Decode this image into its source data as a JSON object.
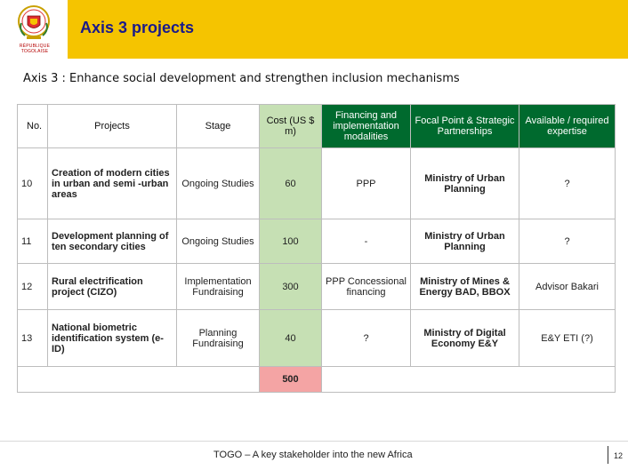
{
  "header": {
    "logo_text": "RÉPUBLIQUE TOGOLAISE",
    "title": "Axis 3 projects"
  },
  "subtitle": "Axis 3 : Enhance social development and strengthen inclusion mechanisms",
  "table": {
    "headers": {
      "no": "No.",
      "projects": "Projects",
      "stage": "Stage",
      "cost": "Cost (US $ m)",
      "financing": "Financing and implementation modalities",
      "focal": "Focal Point & Strategic Partnerships",
      "expertise": "Available / required expertise"
    },
    "rows": [
      {
        "no": "10",
        "project": "Creation of modern cities in urban and semi -urban areas",
        "stage": "Ongoing Studies",
        "cost": "60",
        "financing": "PPP",
        "focal": "Ministry of Urban Planning",
        "expertise": "?"
      },
      {
        "no": "11",
        "project": "Development planning of ten secondary cities",
        "stage": "Ongoing Studies",
        "cost": "100",
        "financing": "-",
        "focal": "Ministry of Urban Planning",
        "expertise": "?"
      },
      {
        "no": "12",
        "project": "Rural electrification project (CIZO)",
        "stage": "Implementation Fundraising",
        "cost": "300",
        "financing": "PPP Concessional financing",
        "focal": "Ministry of Mines & Energy BAD, BBOX",
        "expertise": "Advisor Bakari"
      },
      {
        "no": "13",
        "project": "National biometric identification system (e-ID)",
        "stage": "Planning Fundraising",
        "cost": "40",
        "financing": "?",
        "focal": "Ministry of Digital Economy E&Y",
        "expertise": "E&Y ETI (?)"
      }
    ],
    "total": "500"
  },
  "footer": {
    "text": "TOGO – A key stakeholder into the new Africa",
    "page": "12"
  },
  "colors": {
    "top_bar": "#f5c400",
    "header_green": "#006a2e",
    "cost_green": "#c6e0b4",
    "total_red": "#f4a4a4",
    "title_blue": "#1a1a8a"
  }
}
